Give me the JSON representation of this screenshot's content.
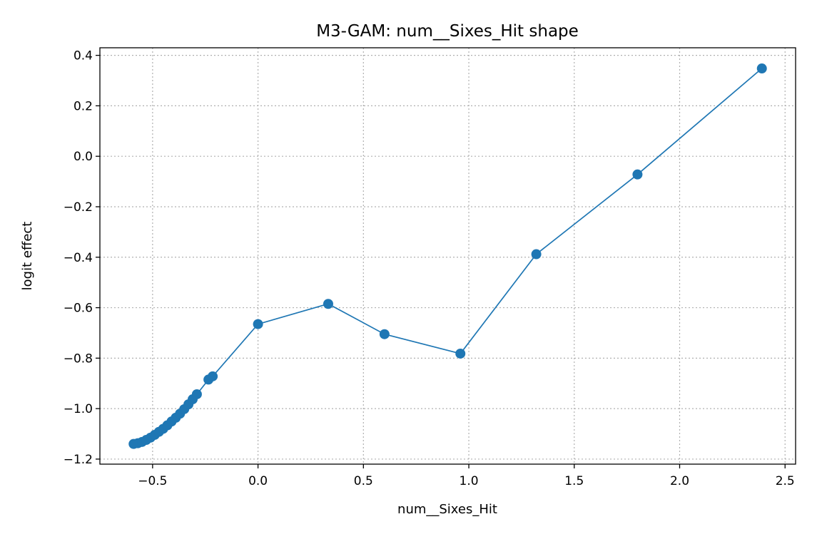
{
  "chart_data": {
    "type": "line",
    "title": "M3-GAM: num__Sixes_Hit shape",
    "xlabel": "num__Sixes_Hit",
    "ylabel": "logit effect",
    "xlim": [
      -0.75,
      2.55
    ],
    "ylim": [
      -1.22,
      0.43
    ],
    "xticks": [
      -0.5,
      0.0,
      0.5,
      1.0,
      1.5,
      2.0,
      2.5
    ],
    "xtick_labels": [
      "−0.5",
      "0.0",
      "0.5",
      "1.0",
      "1.5",
      "2.0",
      "2.5"
    ],
    "yticks": [
      -1.2,
      -1.0,
      -0.8,
      -0.6,
      -0.4,
      -0.2,
      0.0,
      0.2,
      0.4
    ],
    "ytick_labels": [
      "−1.2",
      "−1.0",
      "−0.8",
      "−0.6",
      "−0.4",
      "−0.2",
      "0.0",
      "0.2",
      "0.4"
    ],
    "grid": true,
    "series": [
      {
        "color": "#1f77b4",
        "marker": "circle",
        "x": [
          -0.59,
          -0.57,
          -0.55,
          -0.53,
          -0.51,
          -0.49,
          -0.47,
          -0.45,
          -0.43,
          -0.41,
          -0.39,
          -0.37,
          -0.35,
          -0.33,
          -0.31,
          -0.29,
          -0.235,
          -0.215,
          0.0,
          0.333,
          0.6,
          0.96,
          1.32,
          1.8,
          2.39
        ],
        "y": [
          -1.14,
          -1.137,
          -1.132,
          -1.124,
          -1.115,
          -1.104,
          -1.092,
          -1.08,
          -1.066,
          -1.051,
          -1.036,
          -1.02,
          -1.002,
          -0.983,
          -0.963,
          -0.943,
          -0.885,
          -0.872,
          -0.665,
          -0.585,
          -0.705,
          -0.782,
          -0.388,
          -0.072,
          0.348
        ]
      }
    ]
  }
}
